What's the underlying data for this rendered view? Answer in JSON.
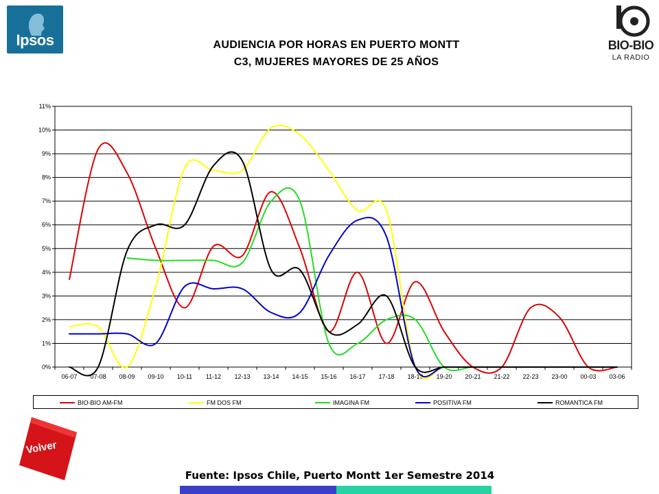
{
  "logos": {
    "ipsos": "Ipsos",
    "biobio_line1": "BIO-BIO",
    "biobio_line2": "LA RADIO"
  },
  "title_line1": "AUDIENCIA POR HORAS EN PUERTO MONTT",
  "title_line2": "C3, MUJERES MAYORES DE 25 AÑOS",
  "footer": "Fuente: Ipsos Chile, Puerto Montt 1er Semestre 2014",
  "volver_button": "Volver",
  "chart_data": {
    "type": "line",
    "title": "AUDIENCIA POR HORAS EN PUERTO MONTT C3, MUJERES MAYORES DE 25 AÑOS",
    "xlabel": "",
    "ylabel": "",
    "ylim": [
      0,
      11
    ],
    "y_tick_format": "percent",
    "yticks": [
      0,
      1,
      2,
      3,
      4,
      5,
      6,
      7,
      8,
      9,
      10,
      11
    ],
    "grid": true,
    "legend_position": "bottom",
    "categories": [
      "06-07",
      "07-08",
      "08-09",
      "09-10",
      "10-11",
      "11-12",
      "12-13",
      "13-14",
      "14-15",
      "15-16",
      "16-17",
      "17-18",
      "18-19",
      "19-20",
      "20-21",
      "21-22",
      "22-23",
      "23-00",
      "00-03",
      "03-06"
    ],
    "series": [
      {
        "name": "BIO-BIO AM-FM",
        "color": "#dd0000",
        "values": [
          3.7,
          9.2,
          8.2,
          5.0,
          2.5,
          5.1,
          4.7,
          7.4,
          5.0,
          1.5,
          4.0,
          1.0,
          3.6,
          1.5,
          0.0,
          0.0,
          2.5,
          2.1,
          0.0,
          0.0
        ]
      },
      {
        "name": "FM DOS FM",
        "color": "#ffff00",
        "values": [
          1.7,
          1.7,
          0.0,
          3.4,
          8.4,
          8.3,
          8.3,
          10.1,
          9.8,
          8.3,
          6.6,
          6.6,
          0.0,
          0.0,
          0.0,
          0.0,
          0.0,
          0.0,
          0.0,
          0.0
        ]
      },
      {
        "name": "IMAGINA FM",
        "color": "#22dd22",
        "values": [
          null,
          null,
          4.6,
          4.5,
          4.5,
          4.5,
          4.4,
          7.0,
          7.0,
          1.0,
          1.0,
          2.0,
          2.0,
          0.0,
          0.0,
          0.0,
          0.0,
          0.0,
          0.0,
          0.0
        ]
      },
      {
        "name": "POSITIVA FM",
        "color": "#0000cc",
        "values": [
          1.4,
          1.4,
          1.4,
          1.0,
          3.4,
          3.3,
          3.3,
          2.3,
          2.3,
          4.7,
          6.2,
          5.5,
          0.0,
          0.0,
          0.0,
          0.0,
          0.0,
          0.0,
          0.0,
          0.0
        ]
      },
      {
        "name": "ROMANTICA FM",
        "color": "#000000",
        "values": [
          0.0,
          0.0,
          4.9,
          6.0,
          6.0,
          8.5,
          8.7,
          4.1,
          4.1,
          1.5,
          1.8,
          3.0,
          0.0,
          0.0,
          0.0,
          0.0,
          0.0,
          0.0,
          0.0,
          0.0
        ]
      }
    ]
  }
}
